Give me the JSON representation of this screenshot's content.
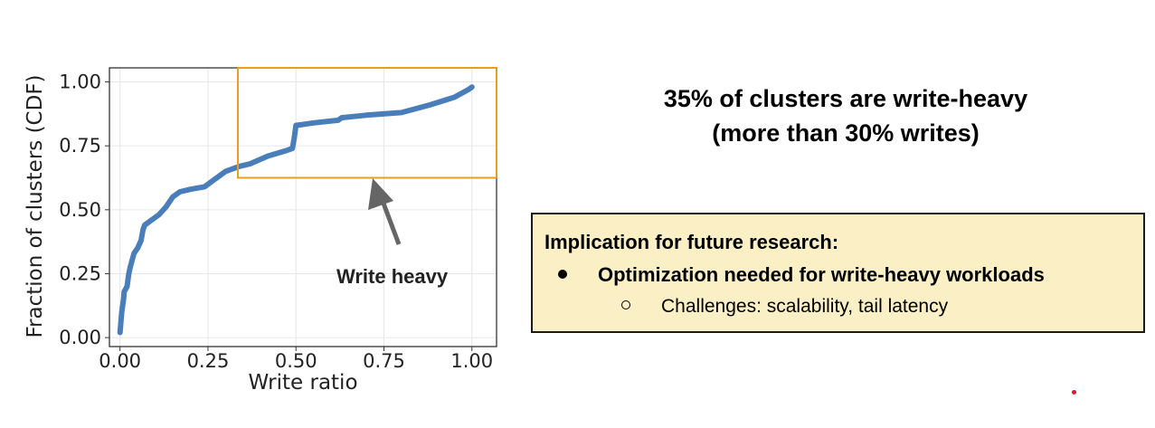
{
  "chart_data": {
    "type": "line",
    "xlabel": "Write ratio",
    "ylabel": "Fraction of clusters (CDF)",
    "xlim": [
      -0.03,
      1.07
    ],
    "ylim": [
      -0.035,
      1.055
    ],
    "xticks": [
      0.0,
      0.25,
      0.5,
      0.75,
      1.0
    ],
    "xtick_labels": [
      "0.00",
      "0.25",
      "0.50",
      "0.75",
      "1.00"
    ],
    "yticks": [
      0.0,
      0.25,
      0.5,
      0.75,
      1.0
    ],
    "ytick_labels": [
      "0.00",
      "0.25",
      "0.50",
      "0.75",
      "1.00"
    ],
    "grid": true,
    "series": [
      {
        "color": "#4a7ebb",
        "x": [
          0.0,
          0.005,
          0.01,
          0.012,
          0.02,
          0.025,
          0.03,
          0.04,
          0.05,
          0.06,
          0.065,
          0.07,
          0.09,
          0.11,
          0.13,
          0.15,
          0.17,
          0.2,
          0.24,
          0.27,
          0.3,
          0.34,
          0.37,
          0.42,
          0.47,
          0.49,
          0.495,
          0.5,
          0.55,
          0.62,
          0.63,
          0.7,
          0.8,
          0.88,
          0.95,
          0.99,
          1.0
        ],
        "y": [
          0.02,
          0.1,
          0.15,
          0.18,
          0.2,
          0.25,
          0.28,
          0.33,
          0.35,
          0.38,
          0.42,
          0.44,
          0.46,
          0.48,
          0.51,
          0.55,
          0.57,
          0.58,
          0.59,
          0.62,
          0.65,
          0.67,
          0.68,
          0.71,
          0.73,
          0.74,
          0.78,
          0.83,
          0.84,
          0.85,
          0.86,
          0.87,
          0.88,
          0.91,
          0.94,
          0.97,
          0.98
        ]
      }
    ],
    "highlight_box": {
      "x0": 0.335,
      "x1": 1.07,
      "y0": 0.625,
      "y1": 1.055,
      "color": "#e6a020"
    },
    "annotation": {
      "text": "Write heavy",
      "arrow_color": "#666666"
    }
  },
  "headline": {
    "line1": "35% of clusters are write-heavy",
    "line2": "(more than 30% writes)"
  },
  "implication": {
    "title": "Implication for future research:",
    "bullet": "Optimization needed for write-heavy workloads",
    "sub_bullet": "Challenges: scalability, tail latency"
  }
}
